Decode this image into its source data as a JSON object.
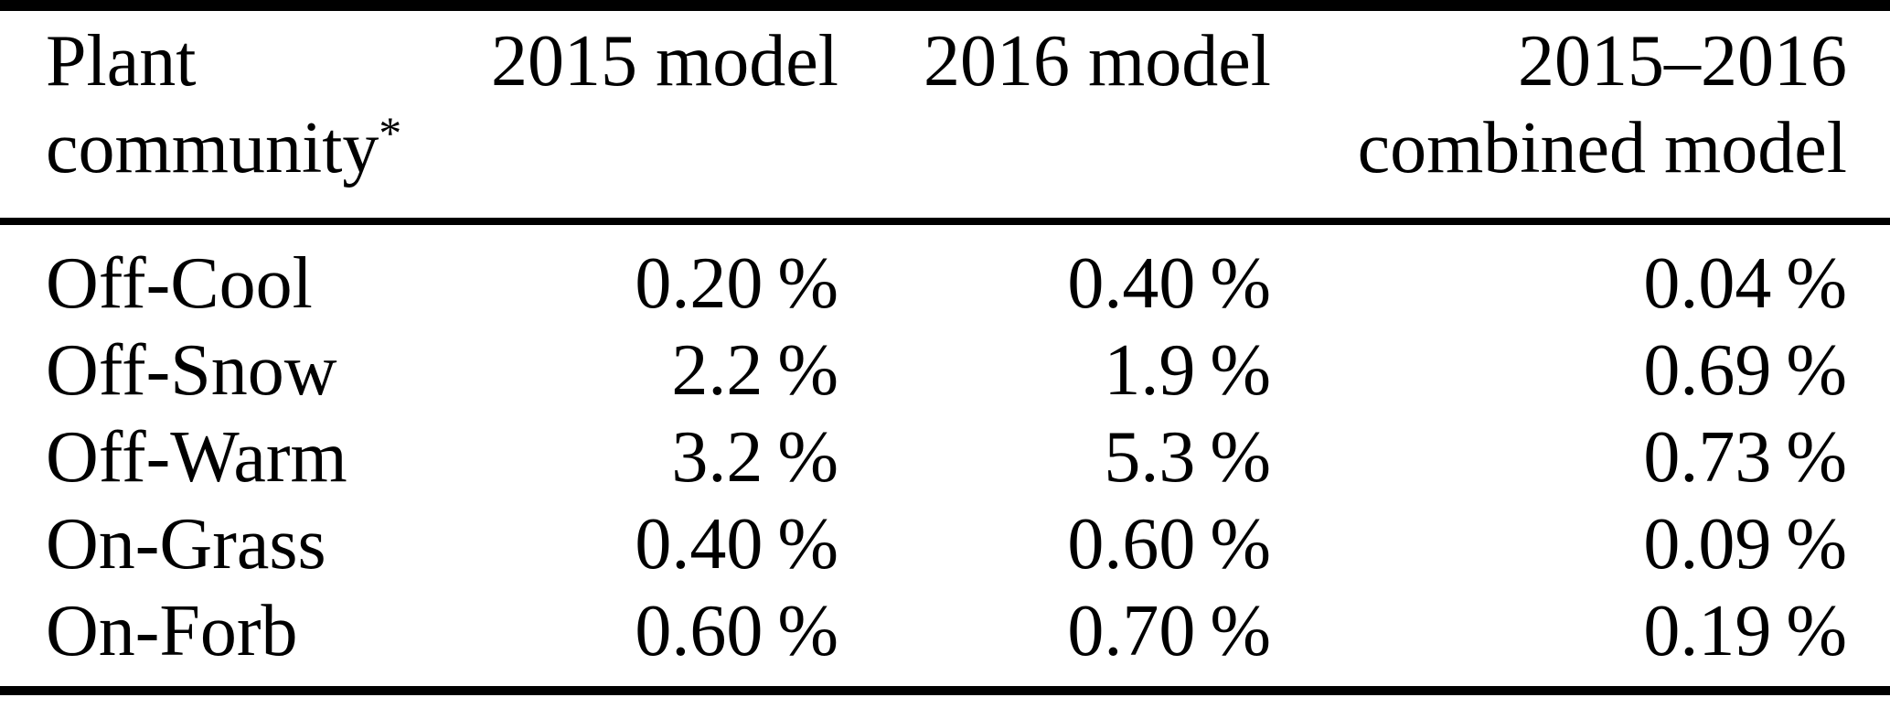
{
  "colors": {
    "background": "#ffffff",
    "text": "#000000",
    "rule": "#000000"
  },
  "table": {
    "header": {
      "col1": {
        "line1": "Plant",
        "line2": "community",
        "footnote_marker": "*"
      },
      "col2": "2015 model",
      "col3": "2016 model",
      "col4": {
        "line1": "2015–2016",
        "line2": "combined model"
      }
    },
    "rows": [
      {
        "community": "Off-Cool",
        "model_2015": "0.20 %",
        "model_2016": "0.40 %",
        "combined": "0.04 %"
      },
      {
        "community": "Off-Snow",
        "model_2015": "2.2 %",
        "model_2016": "1.9 %",
        "combined": "0.69 %"
      },
      {
        "community": "Off-Warm",
        "model_2015": "3.2 %",
        "model_2016": "5.3 %",
        "combined": "0.73 %"
      },
      {
        "community": "On-Grass",
        "model_2015": "0.40 %",
        "model_2016": "0.60 %",
        "combined": "0.09 %"
      },
      {
        "community": "On-Forb",
        "model_2015": "0.60 %",
        "model_2016": "0.70 %",
        "combined": "0.19 %"
      }
    ]
  },
  "chart_data": {
    "type": "table",
    "columns": [
      "Plant community*",
      "2015 model",
      "2016 model",
      "2015–2016 combined model"
    ],
    "categories": [
      "Off-Cool",
      "Off-Snow",
      "Off-Warm",
      "On-Grass",
      "On-Forb"
    ],
    "series": [
      {
        "name": "2015 model",
        "values": [
          0.2,
          2.2,
          3.2,
          0.4,
          0.6
        ]
      },
      {
        "name": "2016 model",
        "values": [
          0.4,
          1.9,
          5.3,
          0.6,
          0.7
        ]
      },
      {
        "name": "2015–2016 combined model",
        "values": [
          0.04,
          0.69,
          0.73,
          0.09,
          0.19
        ]
      }
    ],
    "unit": "%"
  }
}
